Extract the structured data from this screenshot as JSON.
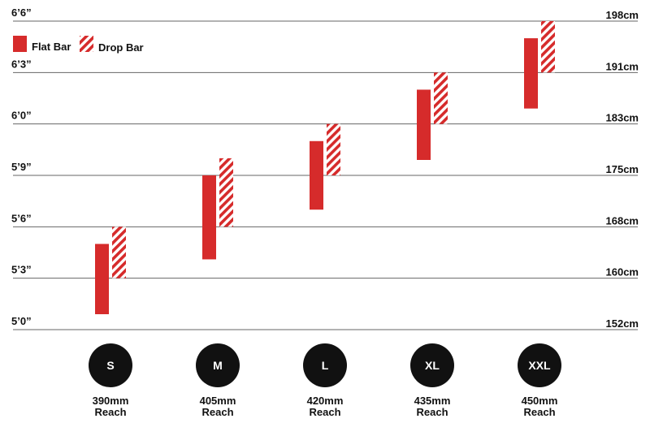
{
  "chart_data": {
    "type": "range-bar",
    "ylim_in": [
      60,
      78
    ],
    "y_ticks_left": [
      {
        "value": 60,
        "label": "5’0”"
      },
      {
        "value": 63,
        "label": "5’3”"
      },
      {
        "value": 66,
        "label": "5’6”"
      },
      {
        "value": 69,
        "label": "5’9”"
      },
      {
        "value": 72,
        "label": "6’0”"
      },
      {
        "value": 75,
        "label": "6’3”"
      },
      {
        "value": 78,
        "label": "6’6”"
      }
    ],
    "y_ticks_right": [
      {
        "value": 60,
        "label": "152cm"
      },
      {
        "value": 63,
        "label": "160cm"
      },
      {
        "value": 66,
        "label": "168cm"
      },
      {
        "value": 69,
        "label": "175cm"
      },
      {
        "value": 72,
        "label": "183cm"
      },
      {
        "value": 75,
        "label": "191cm"
      },
      {
        "value": 78,
        "label": "198cm"
      }
    ],
    "grid": true,
    "legend_position": "top-left",
    "series": [
      {
        "name": "Flat Bar",
        "color": "#d62b2b",
        "pattern": "solid",
        "ranges": [
          [
            60.9,
            65.0
          ],
          [
            64.1,
            69.0
          ],
          [
            67.0,
            71.0
          ],
          [
            69.9,
            74.0
          ],
          [
            72.9,
            77.0
          ]
        ]
      },
      {
        "name": "Drop Bar",
        "color": "#d62b2b",
        "pattern": "hatched",
        "ranges": [
          [
            63.0,
            66.0
          ],
          [
            66.0,
            70.0
          ],
          [
            69.0,
            72.0
          ],
          [
            72.0,
            75.0
          ],
          [
            75.0,
            78.0
          ]
        ]
      }
    ],
    "categories": [
      {
        "size": "S",
        "reach_line1": "390mm",
        "reach_line2": "Reach"
      },
      {
        "size": "M",
        "reach_line1": "405mm",
        "reach_line2": "Reach"
      },
      {
        "size": "L",
        "reach_line1": "420mm",
        "reach_line2": "Reach"
      },
      {
        "size": "XL",
        "reach_line1": "435mm",
        "reach_line2": "Reach"
      },
      {
        "size": "XXL",
        "reach_line1": "450mm",
        "reach_line2": "Reach"
      }
    ]
  }
}
